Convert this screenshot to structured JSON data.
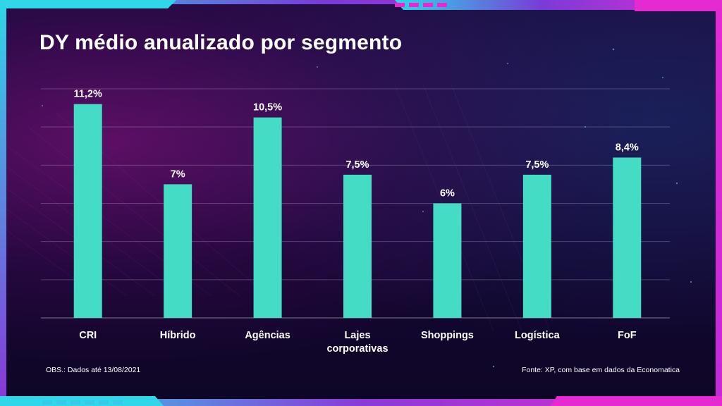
{
  "title": "DY médio anualizado por segmento",
  "chart_data": {
    "type": "bar",
    "title": "DY médio anualizado por segmento",
    "categories": [
      "CRI",
      "Híbrido",
      "Agências",
      "Lajes corporativas",
      "Shoppings",
      "Logística",
      "FoF"
    ],
    "category_lines": [
      [
        "CRI"
      ],
      [
        "Híbrido"
      ],
      [
        "Agências"
      ],
      [
        "Lajes",
        "corporativas"
      ],
      [
        "Shoppings"
      ],
      [
        "Logística"
      ],
      [
        "FoF"
      ]
    ],
    "values": [
      11.2,
      7.0,
      10.5,
      7.5,
      6.0,
      7.5,
      8.4
    ],
    "data_labels": [
      "11,2%",
      "7%",
      "10,5%",
      "7,5%",
      "6%",
      "7,5%",
      "8,4%"
    ],
    "xlabel": "",
    "ylabel": "",
    "ylim": [
      0,
      12
    ],
    "grid": true,
    "bar_color": "#44dcc4"
  },
  "footer": {
    "note": "OBS.: Dados até 13/08/2021",
    "source": "Fonte: XP, com base em dados da Economatica"
  },
  "colors": {
    "background": "#150734",
    "frame_pink": "#e42ad0",
    "frame_cyan": "#2fd7e8"
  }
}
